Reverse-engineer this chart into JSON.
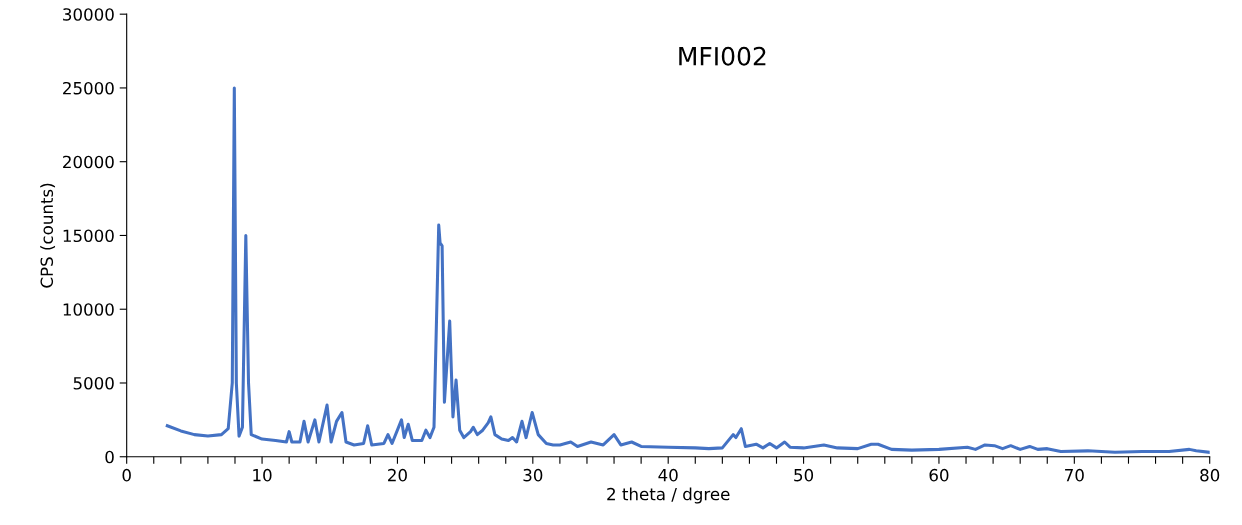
{
  "chart_data": {
    "type": "line",
    "title": "MFI002",
    "xlabel": "2 theta / dgree",
    "ylabel": "CPS (counts)",
    "xlim": [
      0,
      80
    ],
    "ylim": [
      0,
      30000
    ],
    "xticks": [
      0,
      {
        "value": 2,
        "label": null
      },
      {
        "value": 4,
        "label": null
      },
      {
        "value": 6,
        "label": null
      },
      {
        "value": 8,
        "label": null
      },
      10,
      {
        "value": 12,
        "label": null
      },
      {
        "value": 14,
        "label": null
      },
      {
        "value": 16,
        "label": null
      },
      {
        "value": 18,
        "label": null
      },
      20,
      {
        "value": 22,
        "label": null
      },
      {
        "value": 24,
        "label": null
      },
      {
        "value": 26,
        "label": null
      },
      {
        "value": 28,
        "label": null
      },
      30,
      {
        "value": 32,
        "label": null
      },
      {
        "value": 34,
        "label": null
      },
      {
        "value": 36,
        "label": null
      },
      {
        "value": 38,
        "label": null
      },
      40,
      {
        "value": 42,
        "label": null
      },
      {
        "value": 44,
        "label": null
      },
      {
        "value": 46,
        "label": null
      },
      {
        "value": 48,
        "label": null
      },
      50,
      {
        "value": 52,
        "label": null
      },
      {
        "value": 54,
        "label": null
      },
      {
        "value": 56,
        "label": null
      },
      {
        "value": 58,
        "label": null
      },
      60,
      {
        "value": 62,
        "label": null
      },
      {
        "value": 64,
        "label": null
      },
      {
        "value": 66,
        "label": null
      },
      {
        "value": 68,
        "label": null
      },
      70,
      {
        "value": 72,
        "label": null
      },
      {
        "value": 74,
        "label": null
      },
      {
        "value": 76,
        "label": null
      },
      {
        "value": 78,
        "label": null
      },
      80
    ],
    "yticks": [
      0,
      5000,
      10000,
      15000,
      20000,
      25000,
      30000
    ],
    "grid": false,
    "legend": false,
    "marker": "none",
    "line_style": "solid",
    "series": [
      {
        "color": "#4472c4",
        "x": [
          3.0,
          4,
          5,
          6,
          7,
          7.5,
          7.8,
          7.95,
          8.1,
          8.3,
          8.55,
          8.8,
          9.0,
          9.2,
          10,
          11,
          11.8,
          12.0,
          12.2,
          12.8,
          13.1,
          13.4,
          13.9,
          14.2,
          14.8,
          15.1,
          15.5,
          15.9,
          16.2,
          16.8,
          17.5,
          17.8,
          18.1,
          19.0,
          19.3,
          19.6,
          20.3,
          20.5,
          20.8,
          21.1,
          21.8,
          22.1,
          22.4,
          22.7,
          23.05,
          23.15,
          23.3,
          23.47,
          23.86,
          24.1,
          24.33,
          24.6,
          24.9,
          25.4,
          25.6,
          25.9,
          26.3,
          26.7,
          26.9,
          27.2,
          27.7,
          28.2,
          28.5,
          28.8,
          29.2,
          29.5,
          29.95,
          30.4,
          31,
          31.5,
          32.0,
          32.8,
          33.3,
          34.3,
          35.2,
          36.0,
          36.5,
          37.3,
          38,
          40,
          42,
          43,
          44,
          44.8,
          45.0,
          45.4,
          45.7,
          46.5,
          47.0,
          47.5,
          48.0,
          48.6,
          49.0,
          50,
          51.5,
          52.5,
          54,
          55,
          55.5,
          56.5,
          58,
          60,
          62.1,
          62.7,
          63.4,
          64.1,
          64.7,
          65.3,
          66.0,
          66.7,
          67.3,
          68,
          69,
          71,
          73,
          75,
          77,
          78.5,
          79,
          80
        ],
        "values": [
          2100,
          1750,
          1500,
          1400,
          1500,
          1900,
          5000,
          25000,
          5000,
          1400,
          2000,
          15000,
          5000,
          1500,
          1200,
          1100,
          1000,
          1700,
          1000,
          1000,
          2400,
          1000,
          2500,
          1000,
          3500,
          1000,
          2400,
          3000,
          1000,
          800,
          900,
          2100,
          800,
          900,
          1500,
          900,
          2500,
          1300,
          2200,
          1100,
          1100,
          1800,
          1300,
          2000,
          15700,
          14500,
          14300,
          3700,
          9200,
          2700,
          5200,
          1800,
          1300,
          1700,
          2000,
          1500,
          1800,
          2300,
          2700,
          1500,
          1200,
          1100,
          1300,
          1000,
          2400,
          1300,
          3000,
          1500,
          900,
          800,
          800,
          1000,
          700,
          1000,
          800,
          1500,
          800,
          1000,
          700,
          650,
          600,
          550,
          600,
          1500,
          1300,
          1900,
          700,
          850,
          600,
          900,
          600,
          1000,
          650,
          600,
          800,
          600,
          550,
          850,
          850,
          500,
          450,
          500,
          650,
          500,
          800,
          750,
          550,
          750,
          500,
          700,
          500,
          550,
          350,
          400,
          300,
          350,
          350,
          500,
          400,
          300
        ]
      }
    ]
  }
}
